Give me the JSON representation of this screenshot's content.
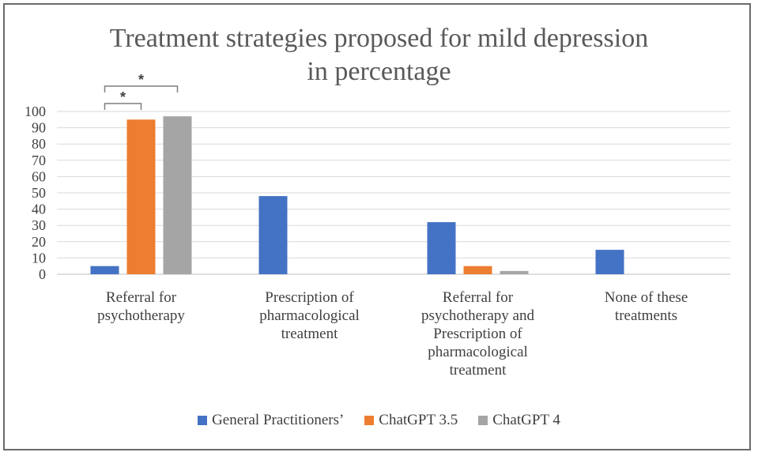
{
  "chart_data": {
    "type": "bar",
    "title_lines": [
      "Treatment strategies proposed for mild depression",
      "in percentage"
    ],
    "categories": [
      [
        "Referral for",
        "psychotherapy"
      ],
      [
        "Prescription of",
        "pharmacological",
        "treatment"
      ],
      [
        "Referral for",
        "psychotherapy and",
        "Prescription of",
        "pharmacological",
        "treatment"
      ],
      [
        "None of these",
        "treatments"
      ]
    ],
    "series": [
      {
        "name": "General Practitioners’",
        "color": "#4472C4",
        "values": [
          5,
          48,
          32,
          15
        ]
      },
      {
        "name": "ChatGPT 3.5",
        "color": "#ED7D31",
        "values": [
          95,
          0,
          5,
          0
        ]
      },
      {
        "name": "ChatGPT 4",
        "color": "#A5A5A5",
        "values": [
          97,
          0,
          2,
          0
        ]
      }
    ],
    "ylim": [
      0,
      100
    ],
    "yticks": [
      "0",
      "10",
      "20",
      "30",
      "40",
      "50",
      "60",
      "70",
      "80",
      "90",
      "100"
    ],
    "grid": true,
    "legend_position": "bottom",
    "significance": [
      {
        "label": "*",
        "category": 0,
        "from_series": 0,
        "to_series": 1
      },
      {
        "label": "*",
        "category": 0,
        "from_series": 0,
        "to_series": 2
      }
    ]
  }
}
